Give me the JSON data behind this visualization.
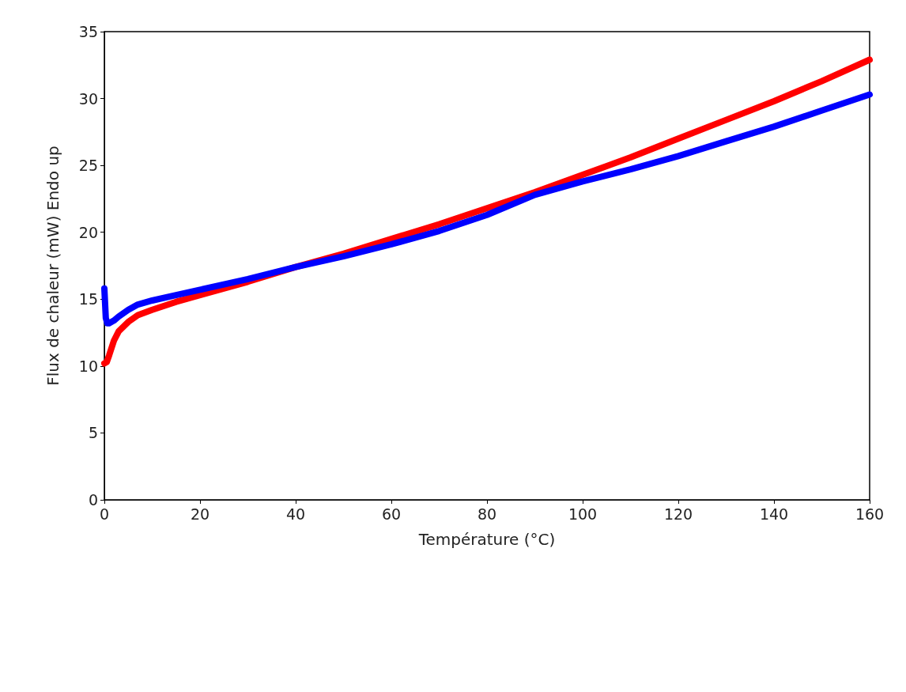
{
  "chart_data": {
    "type": "line",
    "xlabel": "Température (°C)",
    "ylabel": "Flux de chaleur (mW) Endo up",
    "xlim": [
      0,
      160
    ],
    "xticks": [
      0,
      20,
      40,
      60,
      80,
      100,
      120,
      140,
      160
    ],
    "ylim": [
      0,
      35
    ],
    "yticks": [
      0,
      5,
      10,
      15,
      20,
      25,
      30,
      35
    ],
    "grid": false,
    "marker": "none",
    "line_style": "solid",
    "series": [
      {
        "color": "#ff0000",
        "x": [
          0,
          0.5,
          1,
          2,
          3,
          5,
          7,
          10,
          15,
          20,
          30,
          40,
          50,
          60,
          70,
          80,
          90,
          100,
          110,
          120,
          130,
          140,
          150,
          160
        ],
        "values": [
          10.2,
          10.3,
          10.8,
          11.9,
          12.6,
          13.3,
          13.8,
          14.2,
          14.8,
          15.3,
          16.3,
          17.4,
          18.4,
          19.5,
          20.6,
          21.8,
          23.0,
          24.3,
          25.6,
          27.0,
          28.4,
          29.8,
          31.3,
          32.9
        ]
      },
      {
        "color": "#0000ff",
        "x": [
          0,
          0.3,
          0.6,
          1,
          2,
          3,
          5,
          7,
          10,
          15,
          20,
          30,
          40,
          50,
          60,
          70,
          80,
          90,
          100,
          110,
          120,
          130,
          140,
          150,
          160
        ],
        "values": [
          15.8,
          13.6,
          13.2,
          13.2,
          13.4,
          13.7,
          14.2,
          14.6,
          14.9,
          15.3,
          15.7,
          16.5,
          17.4,
          18.2,
          19.1,
          20.1,
          21.3,
          22.8,
          23.8,
          24.7,
          25.7,
          26.8,
          27.9,
          29.1,
          30.3
        ]
      }
    ]
  }
}
